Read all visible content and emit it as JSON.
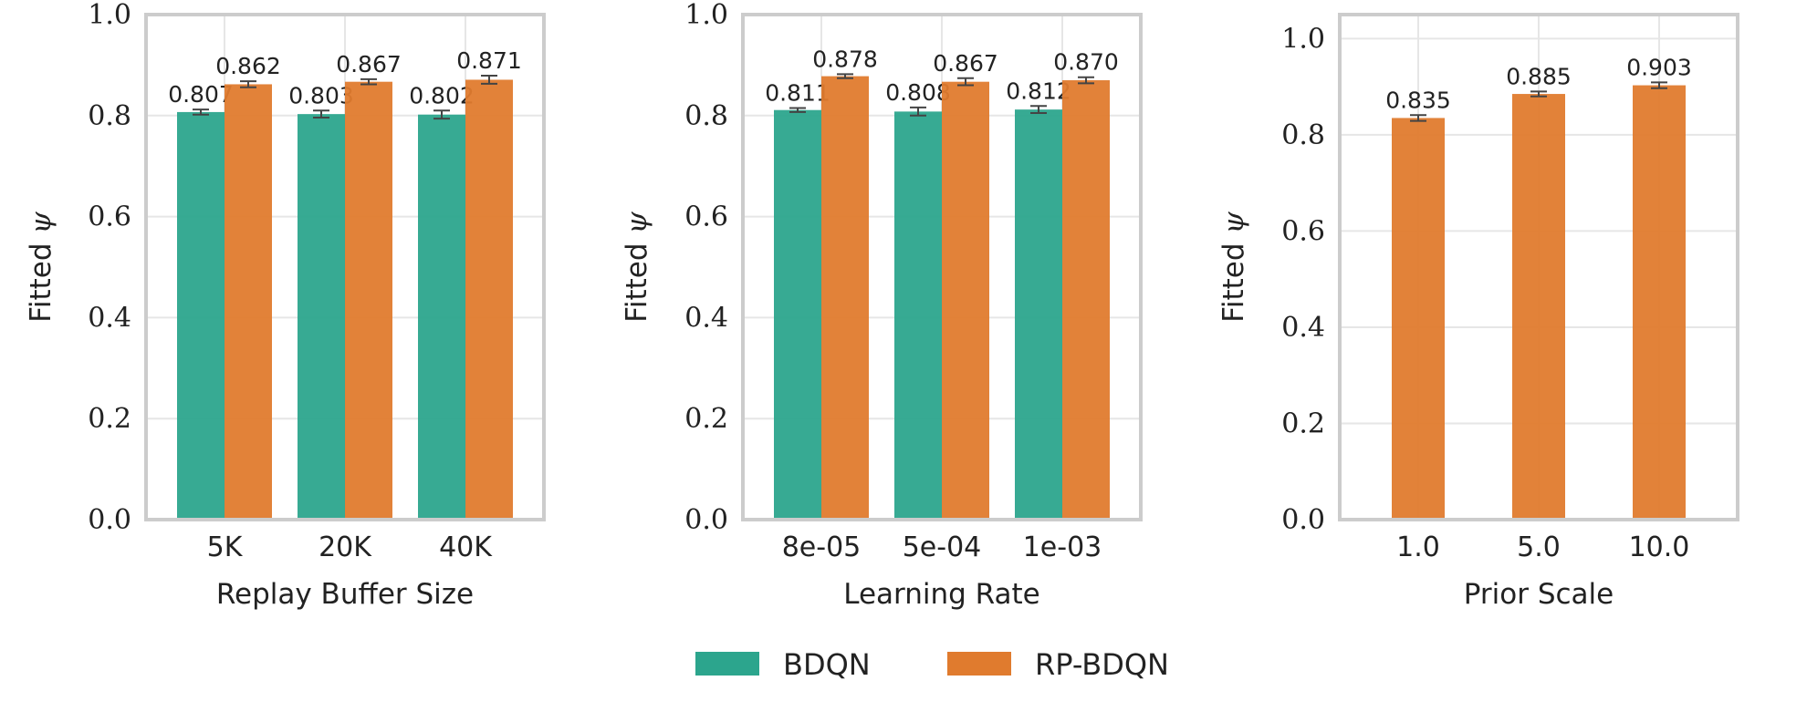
{
  "colors": {
    "bdqn": "#2ca58d",
    "rp_bdqn": "#e07b2e",
    "grid": "#e6e6e6",
    "frame": "#cccccc",
    "errorbar": "#444444"
  },
  "legend": [
    {
      "name": "BDQN",
      "color": "#2ca58d"
    },
    {
      "name": "RP-BDQN",
      "color": "#e07b2e"
    }
  ],
  "chart_data": [
    {
      "type": "bar",
      "xlabel": "Replay Buffer Size",
      "ylabel_prefix": "Fitted",
      "ylabel_symbol": "ψ",
      "ylim": [
        0,
        1.0
      ],
      "yticks": [
        "0.0",
        "0.2",
        "0.4",
        "0.6",
        "0.8",
        "1.0"
      ],
      "categories": [
        "5K",
        "20K",
        "40K"
      ],
      "grid": true,
      "series": [
        {
          "name": "BDQN",
          "values": [
            0.807,
            0.803,
            0.802
          ],
          "labels": [
            "0.807",
            "0.803",
            "0.802"
          ],
          "errors": [
            0.005,
            0.007,
            0.008
          ]
        },
        {
          "name": "RP-BDQN",
          "values": [
            0.862,
            0.867,
            0.871
          ],
          "labels": [
            "0.862",
            "0.867",
            "0.871"
          ],
          "errors": [
            0.006,
            0.005,
            0.008
          ]
        }
      ]
    },
    {
      "type": "bar",
      "xlabel": "Learning Rate",
      "ylabel_prefix": "Fitted",
      "ylabel_symbol": "ψ",
      "ylim": [
        0,
        1.0
      ],
      "yticks": [
        "0.0",
        "0.2",
        "0.4",
        "0.6",
        "0.8",
        "1.0"
      ],
      "categories": [
        "8e-05",
        "5e-04",
        "1e-03"
      ],
      "grid": true,
      "series": [
        {
          "name": "BDQN",
          "values": [
            0.811,
            0.808,
            0.812
          ],
          "labels": [
            "0.811",
            "0.808",
            "0.812"
          ],
          "errors": [
            0.004,
            0.008,
            0.007
          ]
        },
        {
          "name": "RP-BDQN",
          "values": [
            0.878,
            0.867,
            0.87
          ],
          "labels": [
            "0.878",
            "0.867",
            "0.870"
          ],
          "errors": [
            0.004,
            0.007,
            0.006
          ]
        }
      ]
    },
    {
      "type": "bar",
      "xlabel": "Prior Scale",
      "ylabel_prefix": "Fitted",
      "ylabel_symbol": "ψ",
      "ylim": [
        0,
        1.05
      ],
      "yticks": [
        "0.0",
        "0.2",
        "0.4",
        "0.6",
        "0.8",
        "1.0"
      ],
      "categories": [
        "1.0",
        "5.0",
        "10.0"
      ],
      "grid": true,
      "series": [
        {
          "name": "RP-BDQN",
          "values": [
            0.835,
            0.885,
            0.903
          ],
          "labels": [
            "0.835",
            "0.885",
            "0.903"
          ],
          "errors": [
            0.006,
            0.005,
            0.006
          ]
        }
      ]
    }
  ]
}
